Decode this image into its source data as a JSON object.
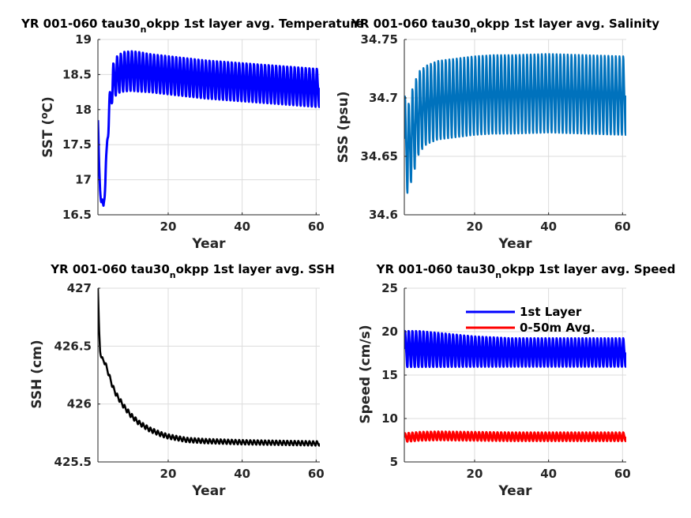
{
  "chart_data": [
    {
      "type": "line",
      "title": "YR 001-060 tau30",
      "title_subscript": "n",
      "title_rest": "okpp 1st layer avg. Temperature",
      "xlabel": "Year",
      "ylabel": "SST (",
      "ylabel_sup": "o",
      "ylabel_rest": "C)",
      "xlim": [
        1,
        61
      ],
      "ylim": [
        16.5,
        19
      ],
      "xticks": [
        20,
        40,
        60
      ],
      "xtick_labels": [
        "20",
        "40",
        "60"
      ],
      "yticks": [
        16.5,
        17,
        17.5,
        18,
        18.5,
        19
      ],
      "ytick_labels": [
        "16.5",
        "17",
        "17.5",
        "18",
        "18.5",
        "19"
      ],
      "grid": true,
      "series": [
        {
          "color": "#0000ff",
          "line_width": 3,
          "style": "seasonal",
          "x": [
            1,
            1.3,
            1.6,
            2,
            2.5,
            3,
            3.5,
            4,
            4.5,
            5,
            6,
            7,
            8,
            10,
            12,
            15,
            20,
            25,
            30,
            35,
            40,
            45,
            50,
            55,
            60,
            61
          ],
          "mid": [
            17.85,
            17.2,
            16.85,
            16.68,
            16.63,
            16.95,
            17.55,
            17.95,
            18.2,
            18.4,
            18.48,
            18.52,
            18.54,
            18.55,
            18.54,
            18.52,
            18.49,
            18.46,
            18.43,
            18.41,
            18.39,
            18.37,
            18.35,
            18.33,
            18.31,
            18.31
          ],
          "amp": [
            0.05,
            0.05,
            0.05,
            0.05,
            0.05,
            0.08,
            0.12,
            0.15,
            0.2,
            0.22,
            0.25,
            0.25,
            0.26,
            0.26,
            0.26,
            0.25,
            0.25,
            0.25,
            0.25,
            0.25,
            0.25,
            0.25,
            0.25,
            0.25,
            0.25,
            0.25
          ]
        }
      ]
    },
    {
      "type": "line",
      "title": "YR 001-060 tau30",
      "title_subscript": "n",
      "title_rest": "okpp 1st layer avg. Salinity",
      "xlabel": "Year",
      "ylabel": "SSS (psu)",
      "xlim": [
        1,
        61
      ],
      "ylim": [
        34.6,
        34.75
      ],
      "xticks": [
        20,
        40,
        60
      ],
      "xtick_labels": [
        "20",
        "40",
        "60"
      ],
      "yticks": [
        34.6,
        34.65,
        34.7,
        34.75
      ],
      "ytick_labels": [
        "34.6",
        "34.65",
        "34.7",
        "34.75"
      ],
      "grid": true,
      "series": [
        {
          "color": "#0072bd",
          "line_width": 2.5,
          "style": "seasonal",
          "x": [
            1,
            2,
            3,
            4,
            5,
            7,
            10,
            15,
            20,
            25,
            30,
            40,
            50,
            60,
            61
          ],
          "mid": [
            34.665,
            34.655,
            34.668,
            34.678,
            34.688,
            34.694,
            34.698,
            34.7,
            34.702,
            34.703,
            34.703,
            34.704,
            34.703,
            34.702,
            34.702
          ],
          "amp": [
            0.035,
            0.035,
            0.035,
            0.034,
            0.032,
            0.031,
            0.031,
            0.031,
            0.031,
            0.031,
            0.031,
            0.031,
            0.031,
            0.031,
            0.031
          ]
        }
      ]
    },
    {
      "type": "line",
      "title": "YR 001-060 tau30",
      "title_subscript": "n",
      "title_rest": "okpp 1st layer avg. SSH",
      "xlabel": "Year",
      "ylabel": "SSH (cm)",
      "xlim": [
        1,
        61
      ],
      "ylim": [
        425.5,
        427
      ],
      "xticks": [
        20,
        40,
        60
      ],
      "xtick_labels": [
        "20",
        "40",
        "60"
      ],
      "yticks": [
        425.5,
        426,
        426.5,
        427
      ],
      "ytick_labels": [
        "425.5",
        "426",
        "426.5",
        "427"
      ],
      "grid": true,
      "series": [
        {
          "color": "#000000",
          "line_width": 2.5,
          "style": "seasonal",
          "x": [
            1,
            1.3,
            1.6,
            2,
            3,
            4,
            5,
            6,
            8,
            10,
            12,
            15,
            18,
            20,
            25,
            30,
            40,
            50,
            60,
            61
          ],
          "mid": [
            427.0,
            426.65,
            426.45,
            426.4,
            426.35,
            426.25,
            426.15,
            426.08,
            425.98,
            425.9,
            425.84,
            425.78,
            425.74,
            425.72,
            425.69,
            425.68,
            425.67,
            425.665,
            425.66,
            425.66
          ],
          "amp": [
            0.01,
            0.01,
            0.01,
            0.012,
            0.015,
            0.016,
            0.017,
            0.018,
            0.018,
            0.018,
            0.018,
            0.018,
            0.018,
            0.018,
            0.018,
            0.018,
            0.018,
            0.018,
            0.018,
            0.018
          ]
        }
      ]
    },
    {
      "type": "line",
      "title": "YR 001-060 tau30",
      "title_subscript": "n",
      "title_rest": "okpp 1st layer avg. Speed",
      "xlabel": "Year",
      "ylabel": "Speed (cm/s)",
      "xlim": [
        1,
        61
      ],
      "ylim": [
        5,
        25
      ],
      "xticks": [
        20,
        40,
        60
      ],
      "xtick_labels": [
        "20",
        "40",
        "60"
      ],
      "yticks": [
        5,
        10,
        15,
        20,
        25
      ],
      "ytick_labels": [
        "5",
        "10",
        "15",
        "20",
        "25"
      ],
      "grid": true,
      "legend": "top-right",
      "series": [
        {
          "name": "1st Layer",
          "color": "#0000ff",
          "line_width": 3,
          "style": "seasonal",
          "x": [
            1,
            5,
            10,
            20,
            30,
            40,
            50,
            60,
            61
          ],
          "mid": [
            18.0,
            18.0,
            17.9,
            17.7,
            17.6,
            17.6,
            17.6,
            17.6,
            17.6
          ],
          "amp": [
            1.9,
            1.9,
            1.8,
            1.6,
            1.5,
            1.5,
            1.5,
            1.5,
            1.5
          ]
        },
        {
          "name": "0-50m Avg.",
          "color": "#ff0000",
          "line_width": 3,
          "style": "seasonal",
          "x": [
            1,
            5,
            10,
            20,
            30,
            40,
            50,
            60,
            61
          ],
          "mid": [
            7.8,
            7.95,
            8.0,
            7.95,
            7.9,
            7.9,
            7.9,
            7.9,
            7.9
          ],
          "amp": [
            0.45,
            0.45,
            0.45,
            0.45,
            0.45,
            0.45,
            0.45,
            0.45,
            0.45
          ]
        }
      ]
    }
  ]
}
